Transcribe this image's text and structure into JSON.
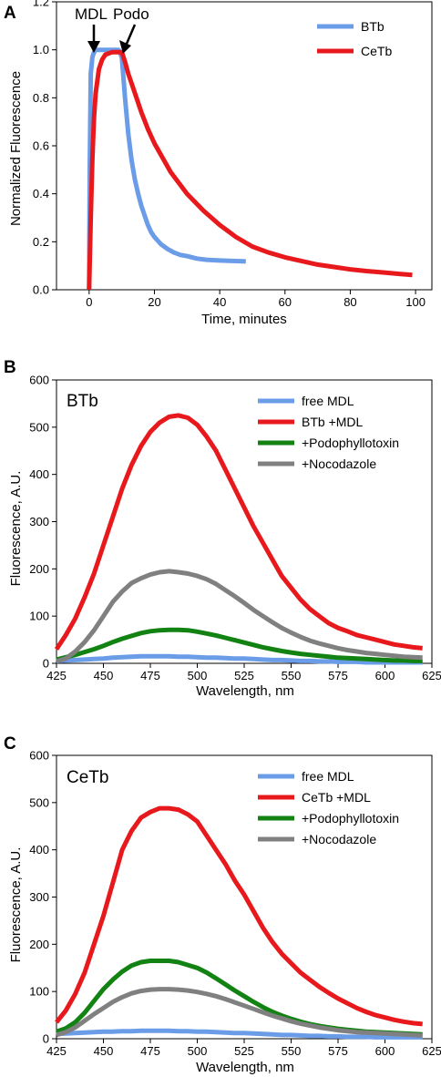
{
  "chart_data": [
    {
      "panel": "A",
      "type": "line",
      "xlabel": "Time, minutes",
      "ylabel": "Normalized Fluorescence",
      "xlim": [
        -10,
        105
      ],
      "ylim": [
        0,
        1.2
      ],
      "xticks": [
        0,
        20,
        40,
        60,
        80,
        100
      ],
      "yticks": [
        "0.0",
        "0.2",
        "0.4",
        "0.6",
        "0.8",
        "1.0",
        "1.2"
      ],
      "legend_position": "top-right",
      "annotations": [
        {
          "text": "MDL",
          "arrow_at": [
            0.5,
            1.0
          ]
        },
        {
          "text": "Podo",
          "arrow_at": [
            9.5,
            1.0
          ]
        }
      ],
      "series": [
        {
          "name": "BTb",
          "color": "#6a9ce8",
          "x": [
            0,
            0.2,
            0.5,
            1,
            1.5,
            2,
            3,
            5,
            7,
            9,
            10,
            11,
            12,
            13,
            14,
            15,
            16,
            17,
            18,
            19,
            20,
            22,
            24,
            26,
            28,
            30,
            33,
            36,
            40,
            44,
            48
          ],
          "y": [
            0,
            0.5,
            0.9,
            0.97,
            0.99,
            1.0,
            1.0,
            1.0,
            1.0,
            1.0,
            0.97,
            0.8,
            0.65,
            0.54,
            0.46,
            0.4,
            0.35,
            0.31,
            0.27,
            0.24,
            0.22,
            0.19,
            0.17,
            0.155,
            0.145,
            0.14,
            0.13,
            0.125,
            0.122,
            0.12,
            0.118
          ]
        },
        {
          "name": "CeTb",
          "color": "#e8191c",
          "x": [
            0,
            0.5,
            1,
            1.5,
            2,
            3,
            4,
            5,
            7,
            9,
            10,
            11,
            12,
            14,
            16,
            18,
            20,
            25,
            30,
            35,
            40,
            45,
            50,
            55,
            60,
            65,
            70,
            75,
            80,
            85,
            90,
            95,
            99
          ],
          "y": [
            0,
            0.3,
            0.55,
            0.72,
            0.82,
            0.92,
            0.96,
            0.98,
            0.99,
            0.99,
            0.99,
            0.95,
            0.9,
            0.82,
            0.74,
            0.67,
            0.61,
            0.49,
            0.4,
            0.33,
            0.27,
            0.22,
            0.18,
            0.155,
            0.135,
            0.12,
            0.105,
            0.095,
            0.085,
            0.078,
            0.072,
            0.066,
            0.062
          ]
        }
      ]
    },
    {
      "panel": "B",
      "type": "line",
      "inset_label": "BTb",
      "xlabel": "Wavelength, nm",
      "ylabel": "Fluorescence, A.U.",
      "xlim": [
        425,
        625
      ],
      "ylim": [
        0,
        600
      ],
      "xticks": [
        425,
        450,
        475,
        500,
        525,
        550,
        575,
        600,
        625
      ],
      "yticks": [
        0,
        100,
        200,
        300,
        400,
        500,
        600
      ],
      "legend_position": "top-right",
      "x": [
        425,
        430,
        435,
        440,
        445,
        450,
        455,
        460,
        465,
        470,
        475,
        480,
        485,
        490,
        495,
        500,
        505,
        510,
        515,
        520,
        525,
        530,
        535,
        540,
        545,
        550,
        555,
        560,
        565,
        570,
        575,
        580,
        585,
        590,
        595,
        600,
        605,
        610,
        615,
        620
      ],
      "series": [
        {
          "name": "free MDL",
          "color": "#6a9ce8",
          "values": [
            5,
            6,
            7,
            8,
            9,
            10,
            12,
            13,
            14,
            15,
            15,
            15,
            15,
            14,
            14,
            13,
            12,
            12,
            11,
            10,
            10,
            9,
            8,
            7,
            7,
            6,
            5,
            5,
            4,
            4,
            3,
            3,
            3,
            2,
            2,
            2,
            2,
            2,
            2,
            2
          ]
        },
        {
          "name": "BTb +MDL",
          "color": "#e8191c",
          "values": [
            30,
            60,
            95,
            140,
            190,
            250,
            310,
            370,
            420,
            460,
            490,
            510,
            522,
            525,
            520,
            505,
            480,
            450,
            410,
            370,
            330,
            290,
            255,
            220,
            185,
            160,
            135,
            115,
            100,
            85,
            75,
            68,
            60,
            55,
            50,
            45,
            40,
            37,
            34,
            32
          ]
        },
        {
          "name": "+Podophyllotoxin",
          "color": "#128212",
          "values": [
            8,
            13,
            18,
            24,
            30,
            37,
            45,
            52,
            58,
            64,
            68,
            70,
            71,
            71,
            70,
            67,
            63,
            59,
            54,
            49,
            44,
            39,
            34,
            30,
            26,
            23,
            20,
            18,
            16,
            14,
            12,
            11,
            10,
            9,
            8,
            7,
            6,
            6,
            5,
            5
          ]
        },
        {
          "name": "+Nocodazole",
          "color": "#808080",
          "values": [
            4,
            10,
            25,
            45,
            70,
            100,
            130,
            152,
            170,
            180,
            188,
            193,
            195,
            193,
            190,
            185,
            178,
            168,
            155,
            142,
            128,
            113,
            100,
            87,
            75,
            65,
            56,
            48,
            42,
            37,
            32,
            28,
            25,
            22,
            20,
            18,
            16,
            14,
            13,
            12
          ]
        }
      ]
    },
    {
      "panel": "C",
      "type": "line",
      "inset_label": "CeTb",
      "xlabel": "Wavelength, nm",
      "ylabel": "Fluorescence, A.U.",
      "xlim": [
        425,
        625
      ],
      "ylim": [
        0,
        600
      ],
      "xticks": [
        425,
        450,
        475,
        500,
        525,
        550,
        575,
        600,
        625
      ],
      "yticks": [
        0,
        100,
        200,
        300,
        400,
        500,
        600
      ],
      "legend_position": "top-right",
      "x": [
        425,
        430,
        435,
        440,
        445,
        450,
        455,
        460,
        465,
        470,
        475,
        480,
        485,
        490,
        495,
        500,
        505,
        510,
        515,
        520,
        525,
        530,
        535,
        540,
        545,
        550,
        555,
        560,
        565,
        570,
        575,
        580,
        585,
        590,
        595,
        600,
        605,
        610,
        615,
        620
      ],
      "series": [
        {
          "name": "free MDL",
          "color": "#6a9ce8",
          "values": [
            10,
            11,
            12,
            13,
            14,
            15,
            15,
            16,
            16,
            17,
            17,
            17,
            17,
            16,
            16,
            15,
            15,
            14,
            13,
            12,
            12,
            11,
            10,
            9,
            8,
            8,
            7,
            6,
            6,
            5,
            5,
            4,
            4,
            4,
            3,
            3,
            3,
            3,
            3,
            3
          ]
        },
        {
          "name": "CeTb +MDL",
          "color": "#e8191c",
          "values": [
            35,
            60,
            95,
            140,
            200,
            260,
            330,
            400,
            440,
            468,
            480,
            488,
            488,
            485,
            475,
            460,
            430,
            400,
            370,
            335,
            305,
            270,
            235,
            205,
            180,
            160,
            140,
            125,
            110,
            97,
            85,
            75,
            65,
            57,
            50,
            45,
            40,
            36,
            33,
            31
          ]
        },
        {
          "name": "+Podophyllotoxin",
          "color": "#128212",
          "values": [
            15,
            22,
            35,
            55,
            80,
            105,
            125,
            142,
            155,
            162,
            165,
            165,
            165,
            162,
            156,
            150,
            140,
            128,
            115,
            102,
            90,
            78,
            67,
            57,
            49,
            42,
            36,
            31,
            27,
            24,
            21,
            19,
            17,
            15,
            14,
            13,
            12,
            11,
            10,
            9
          ]
        },
        {
          "name": "+Nocodazole",
          "color": "#808080",
          "values": [
            8,
            14,
            24,
            38,
            52,
            65,
            78,
            88,
            96,
            101,
            104,
            105,
            105,
            104,
            102,
            99,
            95,
            90,
            84,
            77,
            70,
            63,
            56,
            49,
            43,
            37,
            32,
            28,
            24,
            21,
            18,
            16,
            14,
            13,
            12,
            11,
            10,
            9,
            8,
            7
          ]
        }
      ]
    }
  ]
}
